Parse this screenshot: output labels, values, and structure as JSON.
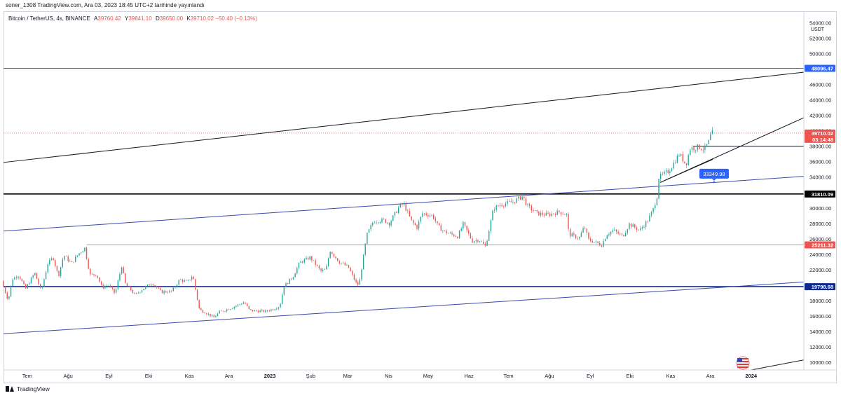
{
  "header": {
    "published": "soner_1308 TradingView.com, Ara 03, 2023 18:45 UTC+2 tarihinde yayınlandı"
  },
  "legend": {
    "symbol": "Bitcoin / TetherUS, 4s, BINANCE",
    "open_label": "A",
    "open": "39760.42",
    "high_label": "Y",
    "high": "39841.10",
    "low_label": "D",
    "low": "39650.00",
    "close_label": "K",
    "close": "39710.02",
    "change": "−50.40 (−0.13%)"
  },
  "footer": {
    "brand": "TradingView"
  },
  "chart_data": {
    "type": "candlestick",
    "currency": "USDT",
    "y_ticks": [
      "54000.00",
      "52000.00",
      "50000.00",
      "48000.00",
      "46000.00",
      "44000.00",
      "42000.00",
      "40000.00",
      "38000.00",
      "36000.00",
      "34000.00",
      "32000.00",
      "30000.00",
      "28000.00",
      "26000.00",
      "24000.00",
      "22000.00",
      "20000.00",
      "18000.00",
      "16000.00",
      "14000.00",
      "12000.00",
      "10000.00"
    ],
    "y_range": [
      9000,
      55500
    ],
    "x_ticks": [
      "Tem",
      "Ağu",
      "Eyl",
      "Eki",
      "Kas",
      "Ara",
      "2023",
      "Şub",
      "Mar",
      "Nis",
      "May",
      "Haz",
      "Tem",
      "Ağu",
      "Eyl",
      "Eki",
      "Kas",
      "Ara",
      "2024"
    ],
    "x_range": [
      "2022-06-13",
      "2024-02-10"
    ],
    "price_labels": [
      {
        "text": "48096.47",
        "value": 48096.47,
        "color": "#2962ff"
      },
      {
        "text": "39710.02",
        "value": 39710.02,
        "color": "#ef5350"
      },
      {
        "text": "03:14:48",
        "value": 39000,
        "color": "#ef5350"
      },
      {
        "text": "31810.09",
        "value": 31810.09,
        "color": "#000000"
      },
      {
        "text": "25211.32",
        "value": 25211.32,
        "color": "#ef5350"
      },
      {
        "text": "19798.68",
        "value": 19798.68,
        "color": "#0d2a8c"
      }
    ],
    "annotation": {
      "text": "33349.98",
      "value": 33349.98,
      "date": "2023-12-05"
    },
    "horizontal_lines": [
      {
        "value": 48096.47,
        "color": "#2962ff",
        "width": 1,
        "from": "2022-06-13"
      },
      {
        "value": 31810.09,
        "color": "#000000",
        "width": 1.6,
        "from": "2022-06-13"
      },
      {
        "value": 25211.32,
        "color": "#ef5350",
        "width": 0.8,
        "from": "2022-08-15"
      },
      {
        "value": 19798.68,
        "color": "#0d2a8c",
        "width": 1.6,
        "from": "2022-06-13"
      },
      {
        "value": 38000,
        "color": "#131722",
        "width": 1,
        "from": "2023-11-18"
      }
    ],
    "current_price_line": {
      "value": 39710.02,
      "color": "#ef5350"
    },
    "trendlines": [
      {
        "from": [
          "2022-06-13",
          35900
        ],
        "to": [
          "2024-02-10",
          47600
        ],
        "color": "#131722",
        "width": 1
      },
      {
        "from": [
          "2022-06-13",
          27000
        ],
        "to": [
          "2024-02-10",
          34100
        ],
        "color": "#3949ab",
        "width": 1
      },
      {
        "from": [
          "2022-06-13",
          13700
        ],
        "to": [
          "2024-02-10",
          20400
        ],
        "color": "#3949ab",
        "width": 1
      },
      {
        "from": [
          "2023-10-24",
          33300
        ],
        "to": [
          "2024-02-10",
          41700
        ],
        "color": "#131722",
        "width": 1
      },
      {
        "from": [
          "2023-10-24",
          33300
        ],
        "to": [
          "2023-12-03",
          36300
        ],
        "color": "#131722",
        "width": 1
      },
      {
        "from": [
          "2024-01-01",
          9000
        ],
        "to": [
          "2024-02-10",
          10300
        ],
        "color": "#131722",
        "width": 1
      }
    ],
    "price_path": [
      [
        "2022-06-13",
        20500
      ],
      [
        "2022-06-18",
        18000
      ],
      [
        "2022-06-21",
        20800
      ],
      [
        "2022-06-26",
        21300
      ],
      [
        "2022-07-01",
        19500
      ],
      [
        "2022-07-08",
        21600
      ],
      [
        "2022-07-13",
        19200
      ],
      [
        "2022-07-18",
        22800
      ],
      [
        "2022-07-22",
        23600
      ],
      [
        "2022-07-26",
        21100
      ],
      [
        "2022-07-30",
        23900
      ],
      [
        "2022-08-05",
        22800
      ],
      [
        "2022-08-10",
        24000
      ],
      [
        "2022-08-15",
        24800
      ],
      [
        "2022-08-19",
        21300
      ],
      [
        "2022-08-24",
        21400
      ],
      [
        "2022-08-28",
        19700
      ],
      [
        "2022-09-02",
        20000
      ],
      [
        "2022-09-07",
        18900
      ],
      [
        "2022-09-12",
        22500
      ],
      [
        "2022-09-15",
        20000
      ],
      [
        "2022-09-19",
        19400
      ],
      [
        "2022-09-22",
        18700
      ],
      [
        "2022-09-28",
        19500
      ],
      [
        "2022-10-05",
        20300
      ],
      [
        "2022-10-12",
        19100
      ],
      [
        "2022-10-20",
        19200
      ],
      [
        "2022-10-26",
        20700
      ],
      [
        "2022-11-01",
        20400
      ],
      [
        "2022-11-05",
        21300
      ],
      [
        "2022-11-08",
        18500
      ],
      [
        "2022-11-10",
        16800
      ],
      [
        "2022-11-14",
        16500
      ],
      [
        "2022-11-21",
        15800
      ],
      [
        "2022-11-25",
        16500
      ],
      [
        "2022-12-05",
        17100
      ],
      [
        "2022-12-14",
        17800
      ],
      [
        "2022-12-18",
        16700
      ],
      [
        "2022-12-30",
        16600
      ],
      [
        "2023-01-05",
        16900
      ],
      [
        "2023-01-10",
        17300
      ],
      [
        "2023-01-13",
        19800
      ],
      [
        "2023-01-20",
        21100
      ],
      [
        "2023-01-25",
        22900
      ],
      [
        "2023-02-02",
        23600
      ],
      [
        "2023-02-10",
        21800
      ],
      [
        "2023-02-14",
        22000
      ],
      [
        "2023-02-17",
        24500
      ],
      [
        "2023-02-24",
        23000
      ],
      [
        "2023-03-03",
        22300
      ],
      [
        "2023-03-09",
        20200
      ],
      [
        "2023-03-11",
        20000
      ],
      [
        "2023-03-13",
        22200
      ],
      [
        "2023-03-17",
        26500
      ],
      [
        "2023-03-22",
        28300
      ],
      [
        "2023-03-30",
        28400
      ],
      [
        "2023-04-03",
        28000
      ],
      [
        "2023-04-11",
        30300
      ],
      [
        "2023-04-14",
        30500
      ],
      [
        "2023-04-20",
        28200
      ],
      [
        "2023-04-24",
        27500
      ],
      [
        "2023-04-28",
        29300
      ],
      [
        "2023-05-06",
        29000
      ],
      [
        "2023-05-10",
        27600
      ],
      [
        "2023-05-15",
        26900
      ],
      [
        "2023-05-25",
        26300
      ],
      [
        "2023-05-29",
        27900
      ],
      [
        "2023-06-05",
        25700
      ],
      [
        "2023-06-10",
        25900
      ],
      [
        "2023-06-15",
        25000
      ],
      [
        "2023-06-21",
        29900
      ],
      [
        "2023-06-26",
        30400
      ],
      [
        "2023-07-06",
        30800
      ],
      [
        "2023-07-13",
        31500
      ],
      [
        "2023-07-17",
        30200
      ],
      [
        "2023-07-24",
        29300
      ],
      [
        "2023-08-01",
        29100
      ],
      [
        "2023-08-10",
        29500
      ],
      [
        "2023-08-16",
        29100
      ],
      [
        "2023-08-17",
        26600
      ],
      [
        "2023-08-25",
        26100
      ],
      [
        "2023-08-29",
        27600
      ],
      [
        "2023-09-01",
        25900
      ],
      [
        "2023-09-11",
        25200
      ],
      [
        "2023-09-15",
        26600
      ],
      [
        "2023-09-20",
        27100
      ],
      [
        "2023-09-27",
        26300
      ],
      [
        "2023-10-02",
        27900
      ],
      [
        "2023-10-10",
        27100
      ],
      [
        "2023-10-16",
        28400
      ],
      [
        "2023-10-20",
        29700
      ],
      [
        "2023-10-23",
        31500
      ],
      [
        "2023-10-24",
        33900
      ],
      [
        "2023-11-01",
        34800
      ],
      [
        "2023-11-09",
        37000
      ],
      [
        "2023-11-14",
        35600
      ],
      [
        "2023-11-17",
        37700
      ],
      [
        "2023-11-24",
        37900
      ],
      [
        "2023-11-28",
        37600
      ],
      [
        "2023-12-02",
        38800
      ],
      [
        "2023-12-03",
        39710
      ]
    ]
  }
}
